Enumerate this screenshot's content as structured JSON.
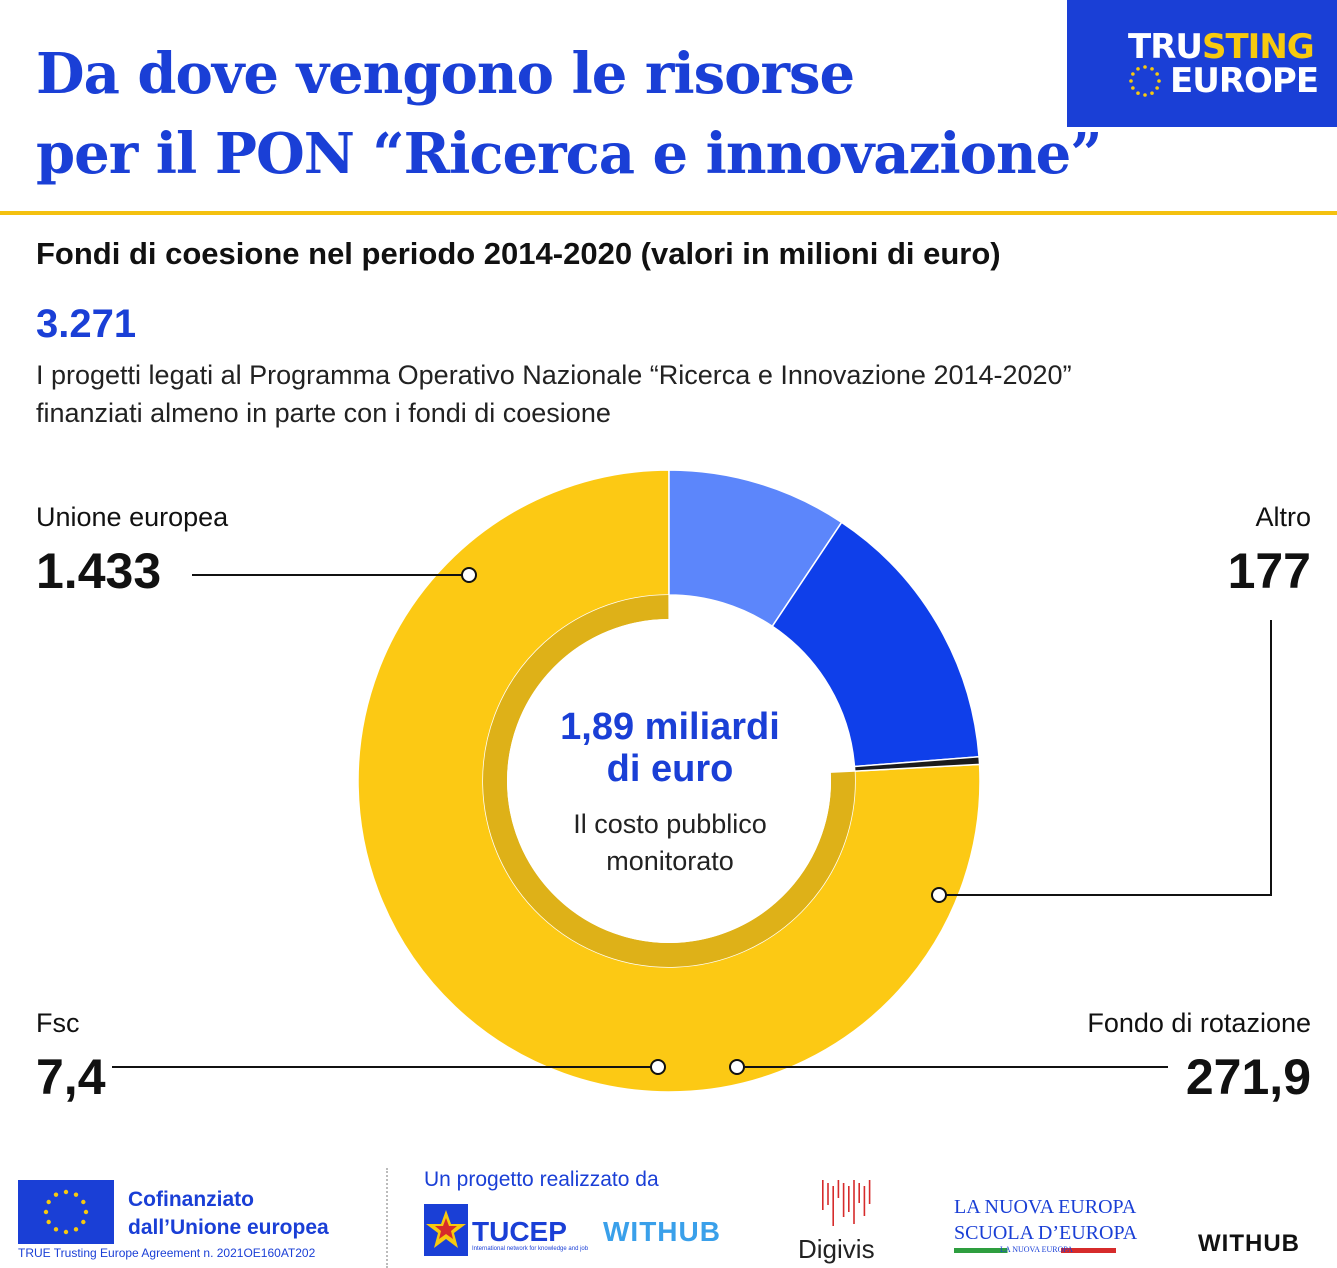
{
  "header": {
    "title_line1": "Da dove vengono le risorse",
    "title_line2": "per il PON “Ricerca e innovazione”",
    "brand_line1_white": "TRU",
    "brand_line1_yellow": "STING",
    "brand_line2": "EUROPE"
  },
  "subtitle": "Fondi di coesione nel periodo 2014-2020 (valori in milioni di euro)",
  "projects": {
    "count": "3.271",
    "description_line1": "I progetti legati al  Programma Operativo Nazionale “Ricerca e Innovazione 2014-2020”",
    "description_line2": "finanziati  almeno in parte con i fondi di coesione"
  },
  "center": {
    "amount_line1": "1,89 miliardi",
    "amount_line2": "di euro",
    "caption_line1": "Il costo pubblico",
    "caption_line2": "monitorato"
  },
  "chart_data": {
    "type": "pie",
    "title": "Fondi di coesione nel periodo 2014-2020 (valori in milioni di euro)",
    "unit": "milioni di euro",
    "slices": [
      {
        "name": "Unione europea",
        "value": 1433,
        "label": "1.433",
        "color": "#fcc914"
      },
      {
        "name": "Altro",
        "value": 177,
        "label": "177",
        "color": "#5c86fb"
      },
      {
        "name": "Fondo di rotazione",
        "value": 271.9,
        "label": "271,9",
        "color": "#0f3fea"
      },
      {
        "name": "Fsc",
        "value": 7.4,
        "label": "7,4",
        "color": "#1c1c1c"
      }
    ],
    "total_label": "1,89 miliardi di euro"
  },
  "colors": {
    "accent_blue": "#1a3fd6",
    "accent_yellow": "#f4c10f"
  },
  "footer": {
    "cofinanced_line1": "Cofinanziato",
    "cofinanced_line2": "dall’Unione europea",
    "agreement": "TRUE Trusting Europe Agreement n. 2021OE160AT202",
    "realized_by": "Un progetto realizzato da",
    "tucep_name": "TUCEP",
    "tucep_sub": "International network for knowledge and job",
    "withub_blue": "WITHUB",
    "digivis": "Digivis",
    "lne_line1": "LA NUOVA EUROPA",
    "lne_line2": "SCUOLA D’EUROPA",
    "lne_line3": "LA NUOVA EUROPA",
    "withub_black": "WITHUB"
  }
}
